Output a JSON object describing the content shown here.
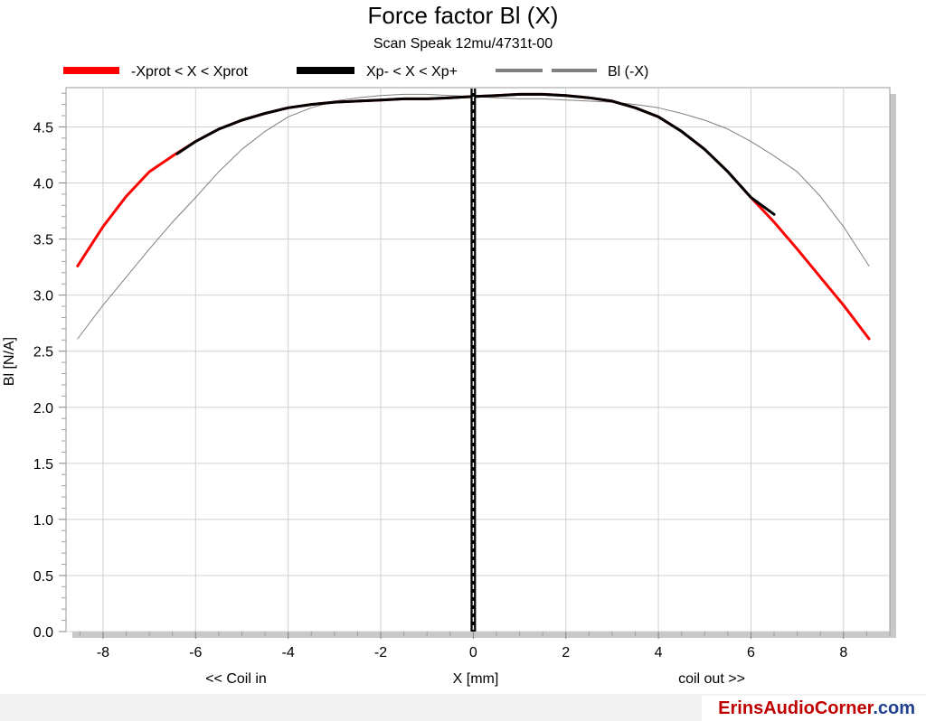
{
  "chart_data": {
    "type": "line",
    "title": "Force factor Bl (X)",
    "subtitle": "Scan Speak 12mu/4731t-00",
    "xlabel": "X [mm]",
    "xlabel_left": "<< Coil in",
    "xlabel_right": "coil out >>",
    "ylabel": "Bl [N/A]",
    "xlim": [
      -8.8,
      9.0
    ],
    "ylim": [
      0.0,
      4.85
    ],
    "xticks": [
      -8,
      -6,
      -4,
      -2,
      0,
      2,
      4,
      6,
      8
    ],
    "yticks": [
      0.0,
      0.5,
      1.0,
      1.5,
      2.0,
      2.5,
      3.0,
      3.5,
      4.0,
      4.5
    ],
    "grid": true,
    "legend_position": "top",
    "series": [
      {
        "name": "-Xprot < X < Xprot",
        "color": "#ff0000",
        "x": [
          -8.55,
          -8.0,
          -7.5,
          -7.0,
          -6.5,
          -6.0,
          -5.5,
          -5.0,
          -4.5,
          -4.0,
          -3.5,
          -3.0,
          -2.5,
          -2.0,
          -1.5,
          -1.0,
          -0.5,
          0.0,
          0.5,
          1.0,
          1.5,
          2.0,
          2.5,
          3.0,
          3.5,
          4.0,
          4.5,
          5.0,
          5.5,
          6.0,
          6.5,
          7.0,
          7.5,
          8.0,
          8.55
        ],
        "y": [
          3.26,
          3.61,
          3.88,
          4.1,
          4.24,
          4.37,
          4.48,
          4.56,
          4.62,
          4.67,
          4.7,
          4.72,
          4.73,
          4.74,
          4.75,
          4.75,
          4.76,
          4.77,
          4.78,
          4.79,
          4.79,
          4.78,
          4.76,
          4.73,
          4.67,
          4.59,
          4.46,
          4.3,
          4.1,
          3.87,
          3.65,
          3.41,
          3.16,
          2.91,
          2.61
        ]
      },
      {
        "name": "Xp- < X < Xp+",
        "color": "#000000",
        "x": [
          -6.4,
          -6.0,
          -5.5,
          -5.0,
          -4.5,
          -4.0,
          -3.5,
          -3.0,
          -2.5,
          -2.0,
          -1.5,
          -1.0,
          -0.5,
          0.0,
          0.5,
          1.0,
          1.5,
          2.0,
          2.5,
          3.0,
          3.5,
          4.0,
          4.5,
          5.0,
          5.5,
          6.0,
          6.5
        ],
        "y": [
          4.26,
          4.37,
          4.48,
          4.56,
          4.62,
          4.67,
          4.7,
          4.72,
          4.73,
          4.74,
          4.75,
          4.75,
          4.76,
          4.77,
          4.78,
          4.79,
          4.79,
          4.78,
          4.76,
          4.73,
          4.67,
          4.59,
          4.46,
          4.3,
          4.1,
          3.87,
          3.72
        ]
      },
      {
        "name": "Bl (-X)",
        "color": "#808080",
        "x": [
          -8.55,
          -8.0,
          -7.5,
          -7.0,
          -6.5,
          -6.0,
          -5.5,
          -5.0,
          -4.5,
          -4.0,
          -3.5,
          -3.0,
          -2.5,
          -2.0,
          -1.5,
          -1.0,
          -0.5,
          0.0,
          0.5,
          1.0,
          1.5,
          2.0,
          2.5,
          3.0,
          3.5,
          4.0,
          4.5,
          5.0,
          5.5,
          6.0,
          6.5,
          7.0,
          7.5,
          8.0,
          8.55
        ],
        "y": [
          2.61,
          2.91,
          3.16,
          3.41,
          3.65,
          3.87,
          4.1,
          4.3,
          4.46,
          4.59,
          4.67,
          4.73,
          4.76,
          4.78,
          4.79,
          4.79,
          4.78,
          4.77,
          4.76,
          4.75,
          4.75,
          4.74,
          4.73,
          4.72,
          4.7,
          4.67,
          4.62,
          4.56,
          4.48,
          4.37,
          4.24,
          4.1,
          3.88,
          3.61,
          3.26
        ]
      }
    ],
    "reference_line": {
      "x": 0
    }
  },
  "watermark": {
    "prefix": "ErinsAudioCorner",
    "suffix": ".com",
    "prefix_color": "#c00000",
    "suffix_color": "#1f3f8f"
  }
}
